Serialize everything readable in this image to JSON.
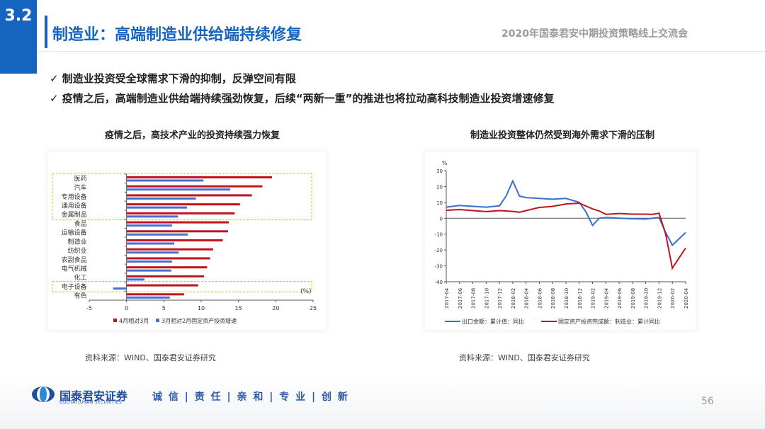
{
  "header": {
    "section_number": "3.2",
    "title": "制造业：高端制造业供给端持续修复",
    "conference": "2020年国泰君安中期投资策略线上交流会"
  },
  "bullets": [
    "✓ 制造业投资受全球需求下滑的抑制，反弹空间有限",
    "✓ 疫情之后，高端制造业供给端持续强劲恢复，后续“两新一重”的推进也将拉动高科技制造业投资增速修复"
  ],
  "colors": {
    "brand_blue": "#1565c0",
    "red_series": "#c0141c",
    "blue_series": "#4a6fd0",
    "highlight_border": "#f0b400"
  },
  "chart_data": [
    {
      "type": "bar",
      "orientation": "horizontal",
      "title": "疫情之后，高技术产业的投资持续强力恢复",
      "categories": [
        "医药",
        "汽车",
        "专用设备",
        "通用设备",
        "金属制品",
        "食品",
        "运输设备",
        "制造业",
        "纺织业",
        "农副食品",
        "电气机械",
        "化工",
        "电子设备",
        "有色"
      ],
      "series": [
        {
          "name": "4月相对3月",
          "color": "#c0141c",
          "values": [
            19.5,
            18.2,
            16.8,
            15.2,
            14.5,
            13.7,
            13.6,
            12.9,
            11.6,
            11.2,
            10.8,
            10.4,
            9.6,
            7.7
          ]
        },
        {
          "name": "3月相对2月固定资产投资增速",
          "color": "#4a6fd0",
          "values": [
            10.3,
            13.9,
            9.3,
            8.1,
            6.9,
            6.1,
            8.2,
            6.4,
            7.0,
            6.1,
            6.0,
            2.4,
            -1.8,
            5.8
          ]
        }
      ],
      "xlim": [
        -5,
        25
      ],
      "xticks": [
        "-5",
        "0",
        "5",
        "10",
        "15",
        "20",
        "25"
      ],
      "unit_label": "(%)",
      "highlight_groups": [
        [
          "医药",
          "金属制品"
        ],
        [
          "电子设备",
          "电子设备"
        ]
      ],
      "source": "资料来源：WIND、国泰君安证券研究"
    },
    {
      "type": "line",
      "title": "制造业投资整体仍然受到海外需求下滑的压制",
      "y_unit": "%",
      "ylim": [
        -40,
        30
      ],
      "yticks": [
        "30",
        "20",
        "10",
        "0",
        "-10",
        "-20",
        "-30",
        "-40"
      ],
      "x_tick_labels": [
        "2017-04",
        "2017-06",
        "2017-08",
        "2017-10",
        "2017-12",
        "2018-02",
        "2018-04",
        "2018-06",
        "2018-08",
        "2018-10",
        "2018-12",
        "2019-02",
        "2019-04",
        "2019-06",
        "2019-08",
        "2019-10",
        "2019-12",
        "2020-02",
        "2020-04"
      ],
      "series": [
        {
          "name": "出口金额：累计值：同比",
          "color": "#3a6fc9",
          "points": [
            [
              "2017-04",
              7
            ],
            [
              "2017-06",
              8
            ],
            [
              "2017-08",
              7.5
            ],
            [
              "2017-10",
              7
            ],
            [
              "2017-12",
              7.8
            ],
            [
              "2018-01",
              14
            ],
            [
              "2018-02",
              23.5
            ],
            [
              "2018-03",
              14
            ],
            [
              "2018-04",
              13
            ],
            [
              "2018-06",
              12.5
            ],
            [
              "2018-08",
              12
            ],
            [
              "2018-10",
              12.5
            ],
            [
              "2018-12",
              10
            ],
            [
              "2019-01",
              4
            ],
            [
              "2019-02",
              -4.5
            ],
            [
              "2019-03",
              0
            ],
            [
              "2019-04",
              0.5
            ],
            [
              "2019-06",
              0
            ],
            [
              "2019-08",
              -0.3
            ],
            [
              "2019-10",
              -0.5
            ],
            [
              "2019-12",
              0.5
            ],
            [
              "2020-01",
              -9
            ],
            [
              "2020-02",
              -17
            ],
            [
              "2020-03",
              -13
            ],
            [
              "2020-04",
              -9
            ]
          ]
        },
        {
          "name": "固定资产投资完成额：制造业：累计同比",
          "color": "#c0141c",
          "points": [
            [
              "2017-04",
              5
            ],
            [
              "2017-06",
              5.5
            ],
            [
              "2017-08",
              4.8
            ],
            [
              "2017-10",
              4.2
            ],
            [
              "2017-12",
              4.8
            ],
            [
              "2018-02",
              4.3
            ],
            [
              "2018-03",
              3.8
            ],
            [
              "2018-04",
              4.8
            ],
            [
              "2018-06",
              6.8
            ],
            [
              "2018-08",
              7.5
            ],
            [
              "2018-10",
              9
            ],
            [
              "2018-12",
              9.5
            ],
            [
              "2019-02",
              5.9
            ],
            [
              "2019-03",
              4.6
            ],
            [
              "2019-04",
              2.5
            ],
            [
              "2019-06",
              3
            ],
            [
              "2019-08",
              2.6
            ],
            [
              "2019-10",
              2.6
            ],
            [
              "2019-11",
              2.5
            ],
            [
              "2019-12",
              3.1
            ],
            [
              "2020-01",
              -10
            ],
            [
              "2020-02",
              -31.5
            ],
            [
              "2020-03",
              -25
            ],
            [
              "2020-04",
              -18.8
            ]
          ]
        }
      ],
      "source": "资料来源：WIND、国泰君安证券研究"
    }
  ],
  "footer": {
    "logo_name": "国泰君安证券",
    "logo_sub": "GUOTAI JUNAN SECURITIES",
    "slogan": "诚 信 | 责 任 | 亲 和 | 专 业 | 创 新",
    "page_number": "56"
  }
}
